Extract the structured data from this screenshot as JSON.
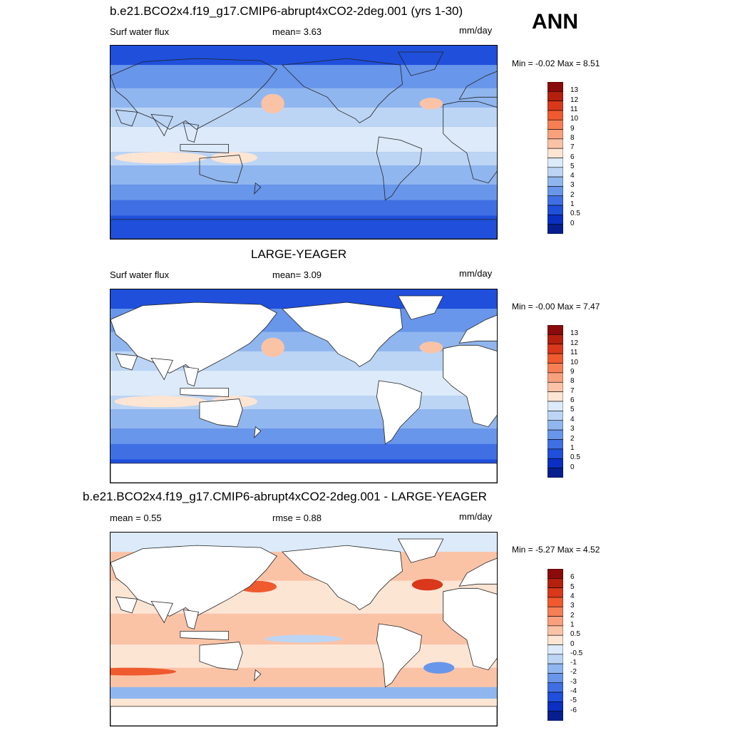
{
  "header": {
    "season": "ANN"
  },
  "panels": [
    {
      "title": "b.e21.BCO2x4.f19_g17.CMIP6-abrupt4xCO2-2deg.001 (yrs 1-30)",
      "left_label": "Surf water flux",
      "stat1": "mean=   3.63",
      "units": "mm/day",
      "minmax": "Min =  -0.02 Max =   8.51",
      "colorbar_levels": [
        "13",
        "12",
        "11",
        "10",
        "9",
        "8",
        "7",
        "6",
        "5",
        "4",
        "3",
        "2",
        "1",
        "0.5",
        "0"
      ],
      "land_masked": false
    },
    {
      "title": "LARGE-YEAGER",
      "left_label": "Surf water flux",
      "stat1": "mean=   3.09",
      "units": "mm/day",
      "minmax": "Min =  -0.00 Max =   7.47",
      "colorbar_levels": [
        "13",
        "12",
        "11",
        "10",
        "9",
        "8",
        "7",
        "6",
        "5",
        "4",
        "3",
        "2",
        "1",
        "0.5",
        "0"
      ],
      "land_masked": true
    },
    {
      "title": "b.e21.BCO2x4.f19_g17.CMIP6-abrupt4xCO2-2deg.001 - LARGE-YEAGER",
      "left_label": "mean =   0.55",
      "stat1": "rmse =   0.88",
      "units": "mm/day",
      "minmax": "Min =  -5.27 Max =   4.52",
      "colorbar_levels": [
        "6",
        "5",
        "4",
        "3",
        "2",
        "1",
        "0.5",
        "0",
        "-0.5",
        "-1",
        "-2",
        "-3",
        "-4",
        "-5",
        "-6"
      ],
      "land_masked": true
    }
  ],
  "colors": {
    "abs_palette": [
      "#8b0a0a",
      "#b3200e",
      "#d9381a",
      "#ef5a2e",
      "#f67f55",
      "#f9a07d",
      "#fbc3a6",
      "#fde5d4",
      "#dceaf9",
      "#bcd5f5",
      "#90b6ef",
      "#6896ea",
      "#3f6fe3",
      "#1f4fdb",
      "#0a2fc2",
      "#061e8e"
    ],
    "diff_palette": [
      "#8b0a0a",
      "#b3200e",
      "#d9381a",
      "#ef5a2e",
      "#f67f55",
      "#f9a07d",
      "#fbc3a6",
      "#fde5d4",
      "#dceaf9",
      "#bcd5f5",
      "#90b6ef",
      "#6896ea",
      "#3f6fe3",
      "#1f4fdb",
      "#0a2fc2",
      "#061e8e"
    ],
    "land_fill": "#ffffff"
  }
}
